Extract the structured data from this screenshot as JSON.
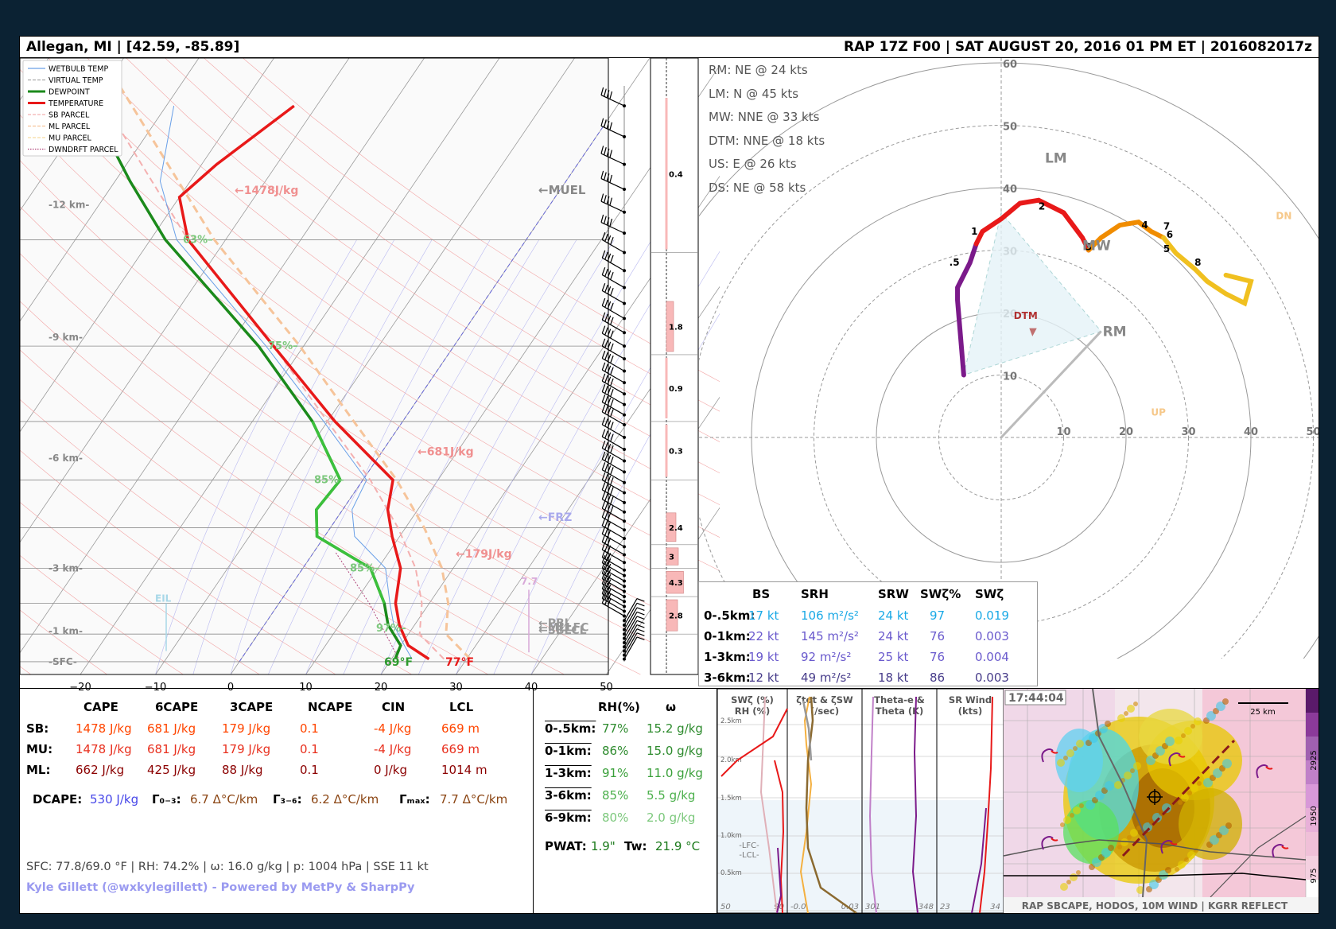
{
  "header": {
    "location": "Allegan, MI  |  [42.59, -85.89]",
    "run": "RAP 17Z F00  |  SAT AUGUST 20, 2016  01 PM ET  |  2016082017z"
  },
  "legend": [
    {
      "label": "WETBULB TEMP",
      "color": "#6aa0e8",
      "style": "solid"
    },
    {
      "label": "VIRTUAL TEMP",
      "color": "#aaaaaa",
      "style": "dash"
    },
    {
      "label": "DEWPOINT",
      "color": "#1b8a1b",
      "style": "solid"
    },
    {
      "label": "TEMPERATURE",
      "color": "#e81919",
      "style": "solid"
    },
    {
      "label": "SB PARCEL",
      "color": "#f4b0b0",
      "style": "dash"
    },
    {
      "label": "ML PARCEL",
      "color": "#f6c49a",
      "style": "dash"
    },
    {
      "label": "MU PARCEL",
      "color": "#f6dca0",
      "style": "dash"
    },
    {
      "label": "DWNDRFT PARCEL",
      "color": "#b0457a",
      "style": "dot"
    }
  ],
  "chart_data": [
    {
      "type": "line",
      "name": "skew-t",
      "pressure_ticks": [
        200,
        300,
        400,
        500,
        600,
        700,
        800,
        900,
        1000
      ],
      "temp_ticks": [
        -20,
        -10,
        0,
        10,
        20,
        30,
        40,
        50
      ],
      "height_labels": [
        "-12 km-",
        "-9 km-",
        "-6 km-",
        "-3 km-",
        "-1 km-",
        "-SFC-"
      ],
      "temperature_profile": [
        {
          "p": 990,
          "t": 25
        },
        {
          "p": 940,
          "t": 21
        },
        {
          "p": 870,
          "t": 18
        },
        {
          "p": 800,
          "t": 15.5
        },
        {
          "p": 700,
          "t": 13
        },
        {
          "p": 620,
          "t": 9
        },
        {
          "p": 560,
          "t": 6
        },
        {
          "p": 500,
          "t": 4
        },
        {
          "p": 400,
          "t": -9
        },
        {
          "p": 300,
          "t": -24
        },
        {
          "p": 200,
          "t": -45
        },
        {
          "p": 170,
          "t": -50
        },
        {
          "p": 150,
          "t": -48
        },
        {
          "p": 120,
          "t": -43
        }
      ],
      "dewpoint_profile": [
        {
          "p": 990,
          "t": 20.5
        },
        {
          "p": 940,
          "t": 20
        },
        {
          "p": 870,
          "t": 16.5
        },
        {
          "p": 800,
          "t": 14
        },
        {
          "p": 700,
          "t": 9
        },
        {
          "p": 620,
          "t": -1
        },
        {
          "p": 560,
          "t": -3.5
        },
        {
          "p": 500,
          "t": -3
        },
        {
          "p": 400,
          "t": -12
        },
        {
          "p": 300,
          "t": -26
        },
        {
          "p": 200,
          "t": -48
        },
        {
          "p": 160,
          "t": -58
        },
        {
          "p": 120,
          "t": -70
        }
      ],
      "annotations": {
        "sb_cape": "←1478J/kg",
        "cape6": "←681J/kg",
        "cape3": "←179J/kg",
        "muel": "←MUEL",
        "frz": "←FRZ",
        "pbl": "←PBL",
        "lfc": "←MLLFC",
        "sblcl": "←SBLCL",
        "lapse": "7.7",
        "eil": "EIL",
        "rh": [
          "63%",
          "75%",
          "85%",
          "85%",
          "97%"
        ],
        "sfc_dew": "69°F",
        "sfc_temp": "77°F"
      }
    },
    {
      "type": "bar",
      "name": "lapse-rate-column",
      "values": [
        0.4,
        1.8,
        0.9,
        0.3,
        2.4,
        3.0,
        4.3,
        2.8
      ]
    },
    {
      "type": "line",
      "name": "hodograph",
      "rings": [
        10,
        20,
        30,
        40,
        50,
        60
      ],
      "x_ticks": [
        10,
        20,
        30,
        40,
        50
      ],
      "markers": [
        "1",
        "2",
        "3",
        "4",
        "5",
        "6",
        "7",
        "8",
        ".5"
      ],
      "labels": {
        "lm": "LM",
        "mw": "MW",
        "rm": "RM",
        "dtm": "DTM",
        "up": "UP",
        "dn": "DN"
      }
    }
  ],
  "motions": [
    "RM: NE @ 24 kts",
    "LM: N @ 45 kts",
    "MW: NNE @ 33 kts",
    "DTM: NNE @ 18 kts",
    "US: E @ 26 kts",
    "DS: NE @ 58 kts"
  ],
  "shear_table": {
    "headers": [
      "BS",
      "SRH",
      "SRW",
      "SWζ%",
      "SWζ"
    ],
    "rows": [
      {
        "layer": "0-.5km:",
        "bs": "17 kt",
        "srh": "106 m²/s²",
        "srw": "24 kt",
        "pct": "97",
        "swz": "0.019",
        "color": "#1aa9e6"
      },
      {
        "layer": "0-1km:",
        "bs": "22 kt",
        "srh": "145 m²/s²",
        "srw": "24 kt",
        "pct": "76",
        "swz": "0.003",
        "color": "#6a5acd"
      },
      {
        "layer": "1-3km:",
        "bs": "19 kt",
        "srh": "92 m²/s²",
        "srw": "25 kt",
        "pct": "76",
        "swz": "0.004",
        "color": "#6a5acd"
      },
      {
        "layer": "3-6km:",
        "bs": "12 kt",
        "srh": "49 m²/s²",
        "srw": "18 kt",
        "pct": "86",
        "swz": "0.003",
        "color": "#483d8b"
      }
    ]
  },
  "parcel_table": {
    "headers": [
      "CAPE",
      "6CAPE",
      "3CAPE",
      "NCAPE",
      "CIN",
      "LCL"
    ],
    "rows": [
      {
        "label": "SB:",
        "cells": [
          "1478 J/kg",
          "681 J/kg",
          "179 J/kg",
          "0.1",
          "-4 J/kg",
          "669 m"
        ],
        "color": "#ff4500"
      },
      {
        "label": "MU:",
        "cells": [
          "1478 J/kg",
          "681 J/kg",
          "179 J/kg",
          "0.1",
          "-4 J/kg",
          "669 m"
        ],
        "color": "#e8301e"
      },
      {
        "label": "ML:",
        "cells": [
          "662 J/kg",
          "425 J/kg",
          "88 J/kg",
          "0.1",
          "0 J/kg",
          "1014 m"
        ],
        "color": "#8b0000"
      }
    ],
    "dcape_label": "DCAPE:",
    "dcape": "530 J/kg",
    "g03_label": "Γ₀₋₃:",
    "g03": "6.7 Δ°C/km",
    "g36_label": "Γ₃₋₆:",
    "g36": "6.2 Δ°C/km",
    "gmax_label": "Γₘₐₓ:",
    "gmax": "7.7 Δ°C/km",
    "sfc": "SFC: 77.8/69.0 °F | RH: 74.2% | ω: 16.0 g/kg | p: 1004 hPa | SSE 11 kt",
    "credit": "Kyle Gillett (@wxkylegillett) - Powered by MetPy & SharpPy"
  },
  "moisture_table": {
    "headers": [
      "RH(%)",
      "ω"
    ],
    "rows": [
      {
        "layer": "0-.5km:",
        "rh": "77%",
        "w": "15.2 g/kg",
        "color": "#2e8b2e"
      },
      {
        "layer": "0-1km:",
        "rh": "86%",
        "w": "15.0 g/kg",
        "color": "#2e8b2e"
      },
      {
        "layer": "1-3km:",
        "rh": "91%",
        "w": "11.0 g/kg",
        "color": "#3aa03a"
      },
      {
        "layer": "3-6km:",
        "rh": "85%",
        "w": "5.5 g/kg",
        "color": "#4cb04c"
      },
      {
        "layer": "6-9km:",
        "rh": "80%",
        "w": "2.0 g/kg",
        "color": "#7cc87c"
      }
    ],
    "pwat_label": "PWAT:",
    "pwat": "1.9\"",
    "tw_label": "Tw:",
    "tw": "21.9 °C"
  },
  "profile_panels": {
    "titles": [
      "SWζ (%)\nRH (%)",
      "ζtot & ζSW\n(/sec)",
      "Theta-e &\nTheta (K)",
      "SR Wind\n(kts)"
    ],
    "heights": [
      "2.5km",
      "2.0km",
      "1.5km",
      "1.0km",
      "0.5km"
    ],
    "axis": [
      [
        "50",
        "90"
      ],
      [
        "-0.0",
        "0.03"
      ],
      [
        "301",
        "348"
      ],
      [
        "23",
        "34"
      ]
    ],
    "lfc_lcl": "-LFC-\n-LCL-"
  },
  "radar": {
    "time": "17:44:04",
    "scale": "25 km",
    "caption": "RAP SBCAPE, HODOS, 10M WIND | KGRR REFLECT",
    "colorbar": [
      "2925",
      "1950",
      "975"
    ]
  }
}
